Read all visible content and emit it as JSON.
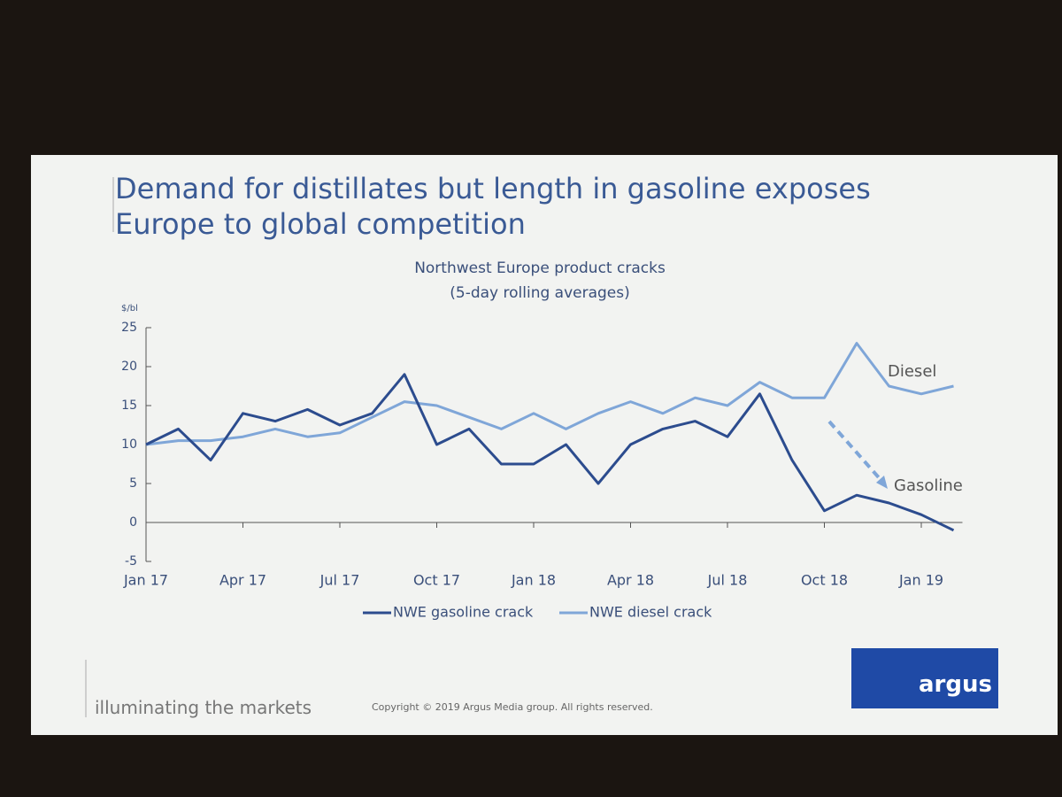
{
  "title": "Demand for distillates but length in gasoline exposes Europe to global competition",
  "footer": {
    "tagline": "illuminating the markets",
    "copyright": "Copyright © 2019 Argus Media group. All rights reserved.",
    "logo": "argus"
  },
  "chart_data": {
    "type": "line",
    "title": "Northwest Europe product cracks",
    "subtitle": "(5-day rolling averages)",
    "y_label": "$/bl",
    "categories": [
      "Jan 17",
      null,
      null,
      "Apr 17",
      null,
      null,
      "Jul 17",
      null,
      null,
      "Oct 17",
      null,
      null,
      "Jan 18",
      null,
      null,
      "Apr 18",
      null,
      null,
      "Jul 18",
      null,
      null,
      "Oct 18",
      null,
      null,
      "Jan 19",
      null
    ],
    "series": [
      {
        "name": "NWE gasoline crack",
        "color": "#2c4c8e",
        "values": [
          10,
          12,
          8,
          14,
          13,
          14.5,
          12.5,
          14,
          19,
          10,
          12,
          7.5,
          7.5,
          10,
          5,
          10,
          12,
          13,
          11,
          16.5,
          8,
          1.5,
          3.5,
          2.5,
          1,
          -1
        ]
      },
      {
        "name": "NWE diesel crack",
        "color": "#7fa6d8",
        "values": [
          10,
          10.5,
          10.5,
          11,
          12,
          11,
          11.5,
          13.5,
          15.5,
          15,
          13.5,
          12,
          14,
          12,
          14,
          15.5,
          14,
          16,
          15,
          18,
          16,
          16,
          23,
          17.5,
          16.5,
          17.5
        ]
      }
    ],
    "annotations": [
      "Diesel",
      "Gasoline"
    ],
    "ylim": [
      -5,
      25
    ],
    "yticks": [
      25,
      20,
      15,
      10,
      5,
      0,
      -5
    ],
    "legend": "bottom"
  }
}
